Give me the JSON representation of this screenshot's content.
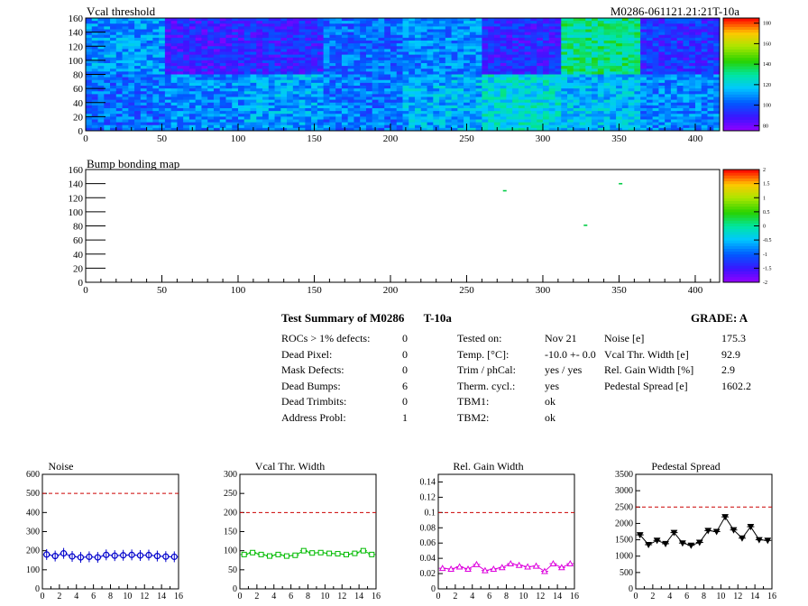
{
  "heatmap": {
    "title": "Vcal threshold",
    "module_label": "M0286-061121.21:21T-10a",
    "x_ticks": [
      "0",
      "50",
      "100",
      "150",
      "200",
      "250",
      "300",
      "350",
      "400"
    ],
    "y_ticks": [
      "0",
      "20",
      "40",
      "60",
      "80",
      "100",
      "120",
      "140",
      "160"
    ],
    "z_ticks": [
      "80",
      "100",
      "120",
      "140",
      "160",
      "180"
    ]
  },
  "bumpmap": {
    "title": "Bump bonding map",
    "x_ticks": [
      "0",
      "50",
      "100",
      "150",
      "200",
      "250",
      "300",
      "350",
      "400"
    ],
    "y_ticks": [
      "0",
      "20",
      "40",
      "60",
      "80",
      "100",
      "120",
      "140",
      "160"
    ],
    "z_ticks": [
      "-2",
      "-1.5",
      "-1",
      "-0.5",
      "0",
      "0.5",
      "1",
      "1.5",
      "2"
    ]
  },
  "summary": {
    "title": "Test Summary of M0286",
    "sub": "T-10a",
    "grade": "GRADE:  A",
    "col1": [
      {
        "label": "ROCs > 1% defects:",
        "value": "0"
      },
      {
        "label": "Dead Pixel:",
        "value": "0"
      },
      {
        "label": "Mask Defects:",
        "value": "0"
      },
      {
        "label": "Dead Bumps:",
        "value": "6"
      },
      {
        "label": "Dead Trimbits:",
        "value": "0"
      },
      {
        "label": "Address Probl:",
        "value": "1"
      }
    ],
    "col2": [
      {
        "label": "Tested on:",
        "value": "Nov 21"
      },
      {
        "label": "Temp. [°C]:",
        "value": "-10.0 +- 0.0"
      },
      {
        "label": "Trim / phCal:",
        "value": "yes / yes"
      },
      {
        "label": "Therm. cycl.:",
        "value": "yes"
      },
      {
        "label": "TBM1:",
        "value": "ok"
      },
      {
        "label": "TBM2:",
        "value": "ok"
      }
    ],
    "col3": [
      {
        "label": "Noise [e]",
        "value": "175.3"
      },
      {
        "label": "Vcal Thr. Width [e]",
        "value": "92.9"
      },
      {
        "label": "Rel. Gain Width [%]",
        "value": "2.9"
      },
      {
        "label": "Pedestal Spread [e]",
        "value": "1602.2"
      }
    ]
  },
  "chart_data": [
    {
      "type": "heatmap",
      "title": "Vcal threshold",
      "xlim": [
        0,
        416
      ],
      "ylim": [
        0,
        160
      ],
      "zlim": [
        75,
        185
      ],
      "roc_means": [
        [
          104,
          108,
          112,
          106,
          114,
          122,
          116,
          108
        ],
        [
          110,
          90,
          92,
          104,
          108,
          92,
          132,
          94
        ]
      ]
    },
    {
      "type": "scatter",
      "title": "Bump bonding map",
      "xlim": [
        0,
        416
      ],
      "ylim": [
        0,
        160
      ],
      "points": [
        {
          "x": 275,
          "y": 130
        },
        {
          "x": 328,
          "y": 81
        },
        {
          "x": 351,
          "y": 140
        }
      ]
    },
    {
      "type": "line",
      "title": "Noise",
      "xlim": [
        0,
        16
      ],
      "ylim": [
        0,
        600
      ],
      "x": [
        0,
        1,
        2,
        3,
        4,
        5,
        6,
        7,
        8,
        9,
        10,
        11,
        12,
        13,
        14,
        15
      ],
      "values": [
        180,
        172,
        186,
        170,
        165,
        168,
        165,
        178,
        174,
        176,
        178,
        175,
        177,
        172,
        169,
        168
      ],
      "threshold": 500,
      "color": "#0000cc",
      "marker": "circle",
      "y_ticks": [
        "0",
        "100",
        "200",
        "300",
        "400",
        "500",
        "600"
      ],
      "x_ticks": [
        "0",
        "2",
        "4",
        "6",
        "8",
        "10",
        "12",
        "14",
        "16"
      ]
    },
    {
      "type": "line",
      "title": "Vcal Thr. Width",
      "xlim": [
        0,
        16
      ],
      "ylim": [
        0,
        300
      ],
      "x": [
        0,
        1,
        2,
        3,
        4,
        5,
        6,
        7,
        8,
        9,
        10,
        11,
        12,
        13,
        14,
        15
      ],
      "values": [
        90,
        95,
        90,
        86,
        90,
        86,
        88,
        100,
        94,
        95,
        93,
        92,
        90,
        93,
        100,
        90
      ],
      "threshold": 200,
      "color": "#00bb00",
      "marker": "square",
      "y_ticks": [
        "0",
        "50",
        "100",
        "150",
        "200",
        "250",
        "300"
      ],
      "x_ticks": [
        "0",
        "2",
        "4",
        "6",
        "8",
        "10",
        "12",
        "14",
        "16"
      ]
    },
    {
      "type": "line",
      "title": "Rel. Gain Width",
      "xlim": [
        0,
        16
      ],
      "ylim": [
        0,
        0.15
      ],
      "x": [
        0,
        1,
        2,
        3,
        4,
        5,
        6,
        7,
        8,
        9,
        10,
        11,
        12,
        13,
        14,
        15
      ],
      "values": [
        0.027,
        0.026,
        0.029,
        0.026,
        0.032,
        0.024,
        0.026,
        0.028,
        0.033,
        0.031,
        0.029,
        0.03,
        0.023,
        0.033,
        0.028,
        0.033
      ],
      "threshold": 0.1,
      "color": "#dd00dd",
      "marker": "triangle",
      "y_ticks": [
        "0",
        "0.02",
        "0.04",
        "0.06",
        "0.08",
        "0.1",
        "0.12",
        "0.14"
      ],
      "x_ticks": [
        "0",
        "2",
        "4",
        "6",
        "8",
        "10",
        "12",
        "14",
        "16"
      ]
    },
    {
      "type": "line",
      "title": "Pedestal Spread",
      "xlim": [
        0,
        16
      ],
      "ylim": [
        0,
        3500
      ],
      "x": [
        0,
        1,
        2,
        3,
        4,
        5,
        6,
        7,
        8,
        9,
        10,
        11,
        12,
        13,
        14,
        15
      ],
      "values": [
        1650,
        1350,
        1480,
        1380,
        1720,
        1400,
        1330,
        1420,
        1780,
        1750,
        2200,
        1800,
        1550,
        1900,
        1500,
        1480
      ],
      "threshold": 2500,
      "color": "#000000",
      "marker": "triangle-down",
      "y_ticks": [
        "0",
        "500",
        "1000",
        "1500",
        "2000",
        "2500",
        "3000",
        "3500"
      ],
      "x_ticks": [
        "0",
        "2",
        "4",
        "6",
        "8",
        "10",
        "12",
        "14",
        "16"
      ]
    }
  ]
}
